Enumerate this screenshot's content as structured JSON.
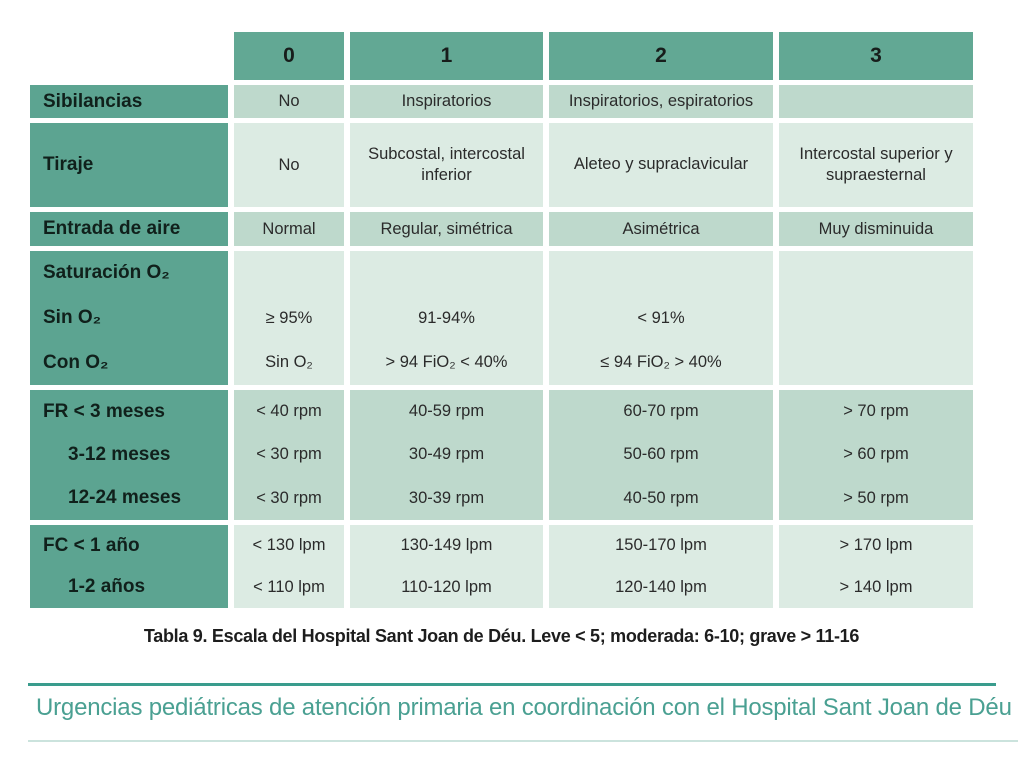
{
  "table": {
    "column_headers": [
      "0",
      "1",
      "2",
      "3"
    ],
    "rows": [
      {
        "label": "Sibilancias",
        "c0": "No",
        "c1": "Inspiratorios",
        "c2": "Inspiratorios, espiratorios",
        "c3": ""
      },
      {
        "label": "Tiraje",
        "c0": "No",
        "c1": "Subcostal, intercostal inferior",
        "c2": "Aleteo y supraclavicular",
        "c3": "Intercostal superior y supraesternal"
      },
      {
        "label": "Entrada de aire",
        "c0": "Normal",
        "c1": "Regular, simétrica",
        "c2": "Asimétrica",
        "c3": "Muy disminuida"
      },
      {
        "label_lines": [
          "Saturación O₂",
          "Sin O₂",
          "Con O₂"
        ],
        "c0_lines": [
          "≥ 95%",
          "Sin O₂"
        ],
        "c1_lines": [
          "91-94%",
          "> 94 FiO₂ < 40%"
        ],
        "c2_lines": [
          "< 91%",
          "≤ 94 FiO₂ > 40%"
        ],
        "c3": ""
      },
      {
        "label_lines": [
          "FR < 3 meses",
          "3-12 meses",
          "12-24 meses"
        ],
        "c0_lines": [
          "< 40 rpm",
          "< 30 rpm",
          "< 30 rpm"
        ],
        "c1_lines": [
          "40-59 rpm",
          "30-49 rpm",
          "30-39 rpm"
        ],
        "c2_lines": [
          "60-70 rpm",
          "50-60 rpm",
          "40-50 rpm"
        ],
        "c3_lines": [
          "> 70 rpm",
          "> 60 rpm",
          "> 50 rpm"
        ]
      },
      {
        "label_lines": [
          "FC < 1 año",
          "1-2 años"
        ],
        "c0_lines": [
          "< 130 lpm",
          "< 110 lpm"
        ],
        "c1_lines": [
          "130-149 lpm",
          "110-120 lpm"
        ],
        "c2_lines": [
          "150-170 lpm",
          "120-140 lpm"
        ],
        "c3_lines": [
          "> 170 lpm",
          "> 140 lpm"
        ]
      }
    ],
    "caption": "Tabla 9. Escala del Hospital Sant Joan de Déu. Leve < 5; moderada: 6-10; grave > 11-16"
  },
  "footer": {
    "title": "Urgencias pediátricas de atención primaria en coordinación con el Hospital Sant Joan de Déu"
  },
  "colors": {
    "header_teal": "#62a894",
    "label_teal": "#5ca491",
    "cell_medium": "#bed9cc",
    "cell_light": "#dcebe3",
    "rule_dark": "#3a9c8d",
    "rule_light": "#cbe3dd",
    "footer_text": "#4aa092"
  }
}
